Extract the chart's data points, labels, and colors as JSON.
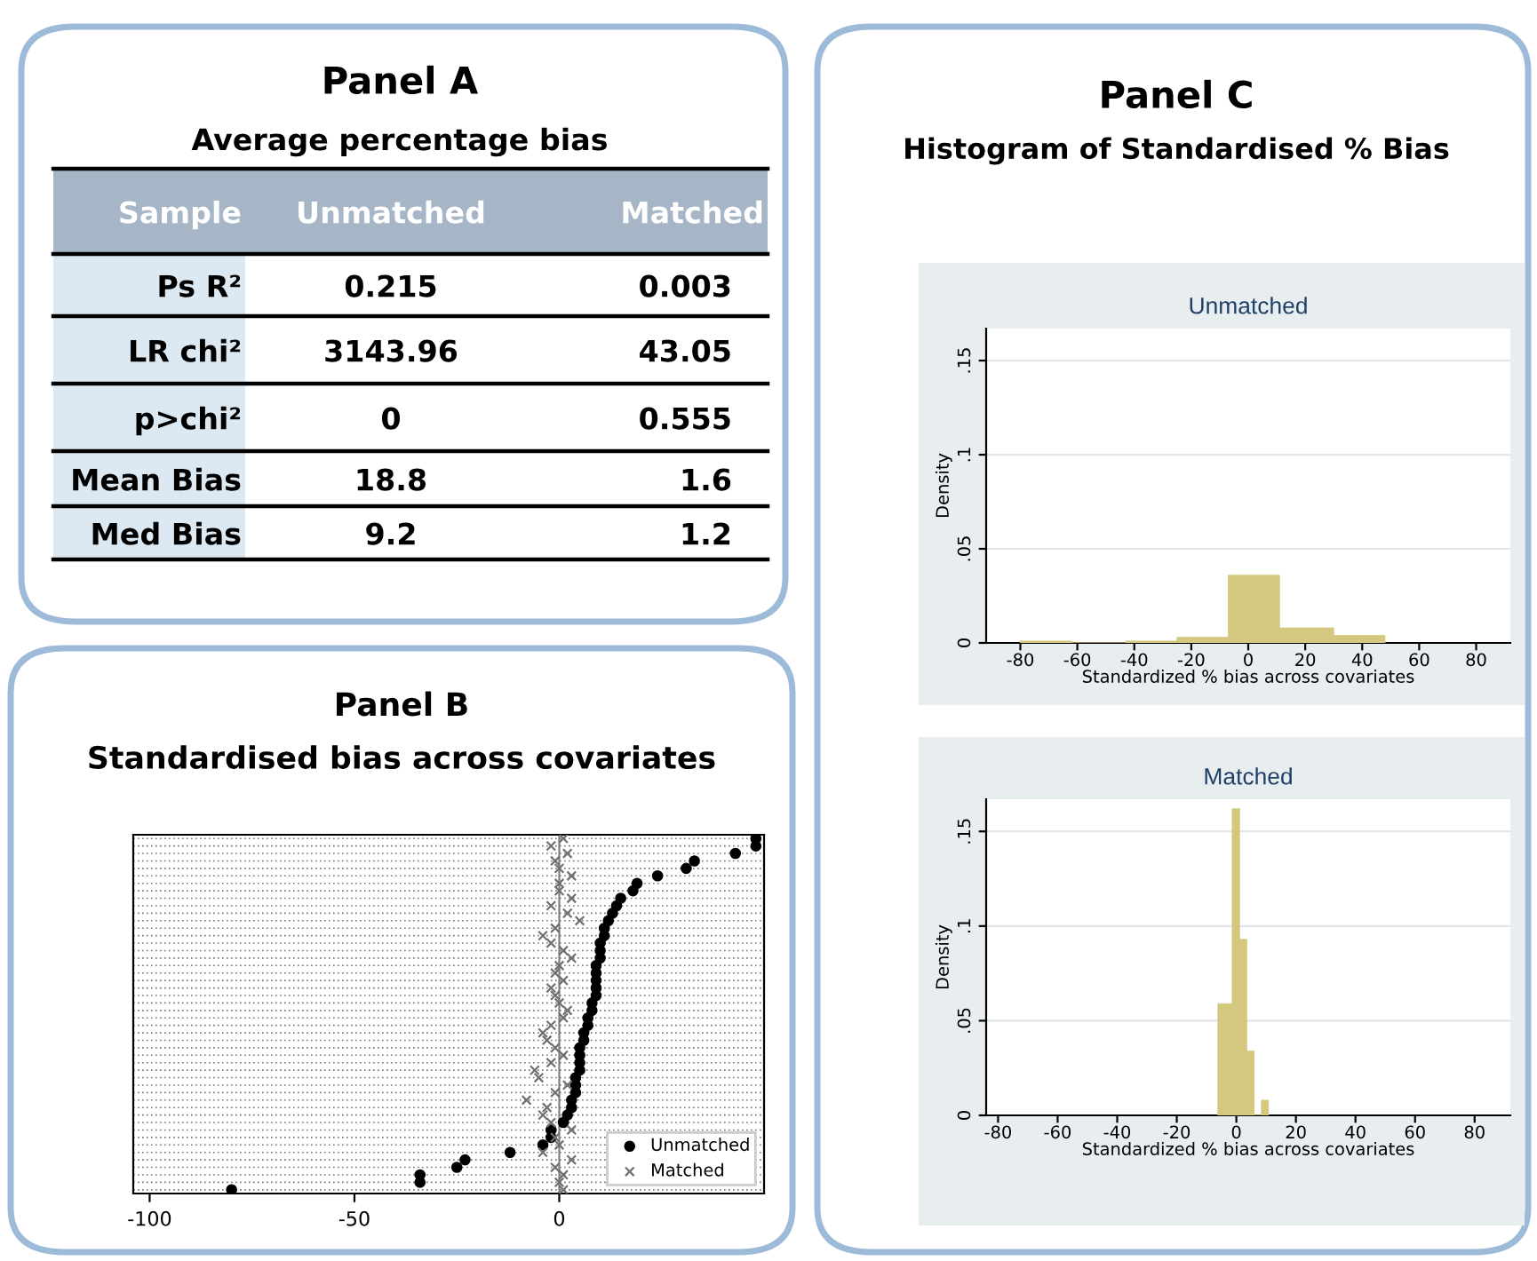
{
  "chart_data": [
    {
      "type": "other",
      "title": "Panel A",
      "subtitle": "Average percentage bias",
      "annotations": [
        "Sample",
        "Unmatched",
        "Matched",
        "Ps R²",
        "0.215",
        "0.003",
        "LR chi²",
        "3143.96",
        "43.05",
        "p>chi²",
        "0",
        "0.555",
        "Mean Bias",
        "18.8",
        "1.6",
        "Med Bias",
        "9.2",
        "1.2"
      ]
    },
    {
      "type": "scatter",
      "title": "Panel B",
      "subtitle": "Standardised bias across covariates",
      "orientation": "horizontal",
      "categories": [
        null,
        null,
        null,
        null,
        null,
        null,
        null,
        null,
        null,
        null,
        null,
        null,
        null,
        null,
        null,
        null,
        null,
        null,
        null,
        null,
        null,
        null,
        null,
        null,
        null,
        null,
        null,
        null,
        null,
        null,
        null,
        null,
        null,
        null,
        null,
        null,
        null,
        null,
        null,
        null,
        null,
        null,
        null,
        null,
        null,
        null,
        null,
        null
      ],
      "series": [
        {
          "name": "Unmatched",
          "color": "#000000",
          "marker": "circle",
          "values": [
            48,
            48,
            43,
            33,
            31,
            24,
            19,
            18,
            15,
            14,
            13,
            12,
            11,
            11,
            10,
            10,
            10,
            9,
            9,
            9,
            9,
            9,
            8,
            8,
            7,
            7,
            6,
            6,
            5,
            5,
            5,
            5,
            4,
            4,
            4,
            3,
            3,
            2,
            1,
            -2,
            -2,
            -4,
            -12,
            -23,
            -25,
            -34,
            -34,
            -80
          ]
        },
        {
          "name": "Matched",
          "color": "#707070",
          "marker": "cross",
          "values": [
            1,
            -2,
            2,
            -1,
            0,
            3,
            0,
            0,
            3,
            -2,
            2,
            5,
            -1,
            -4,
            -2,
            1,
            3,
            0,
            -1,
            1,
            -2,
            -1,
            0,
            2,
            1,
            -2,
            -4,
            -3,
            -1,
            1,
            -2,
            -6,
            -5,
            2,
            -1,
            -8,
            -3,
            -4,
            -2,
            3,
            -1,
            0,
            -4,
            3,
            -1,
            1,
            0,
            1
          ]
        }
      ],
      "xlim": [
        -104,
        50
      ],
      "xticks": [
        -100,
        -50,
        0
      ],
      "ref_lines": [
        {
          "axis": "x",
          "value": 0,
          "color": "#808080"
        }
      ],
      "grid": "y",
      "legend": "bottom right",
      "tick_labels": "x"
    },
    {
      "type": "other",
      "title": "Panel C",
      "subtitle": "Histogram of Standardised % Bias"
    },
    {
      "type": "histogram",
      "title": "Unmatched",
      "xlabel": "Standardized % bias across covariates",
      "ylabel": "Density",
      "color": "#d4c87f",
      "bins": [
        -80,
        -62,
        -43,
        -25,
        -7,
        11,
        30,
        48
      ],
      "values": [
        0.001,
        0,
        0.001,
        0.003,
        0.036,
        0.008,
        0.004
      ],
      "xlim": [
        -92,
        92
      ],
      "ylim": [
        0,
        0.167
      ],
      "xticks": [
        -80,
        -60,
        -40,
        -20,
        0,
        20,
        40,
        60,
        80
      ],
      "yticks": [
        0,
        {
          "value": 0.05,
          "label": ".05"
        },
        {
          "value": 0.1,
          "label": ".1"
        },
        {
          "value": 0.15,
          "label": ".15"
        }
      ],
      "grid": "y"
    },
    {
      "type": "histogram",
      "title": "Matched",
      "xlabel": "Standardized % bias across covariates",
      "ylabel": "Density",
      "color": "#d4c87f",
      "bins": [
        -6.2,
        -3.8,
        -1.4,
        1.1,
        3.5,
        6,
        8.4,
        10.8
      ],
      "values": [
        0.059,
        0.059,
        0.162,
        0.093,
        0.034,
        0,
        0.008
      ],
      "xlim": [
        -84,
        92
      ],
      "ylim": [
        0,
        0.167
      ],
      "xticks": [
        -80,
        -60,
        -40,
        -20,
        0,
        20,
        40,
        60,
        80
      ],
      "yticks": [
        0,
        {
          "value": 0.05,
          "label": ".05"
        },
        {
          "value": 0.1,
          "label": ".1"
        },
        {
          "value": 0.15,
          "label": ".15"
        }
      ],
      "grid": "y"
    }
  ]
}
